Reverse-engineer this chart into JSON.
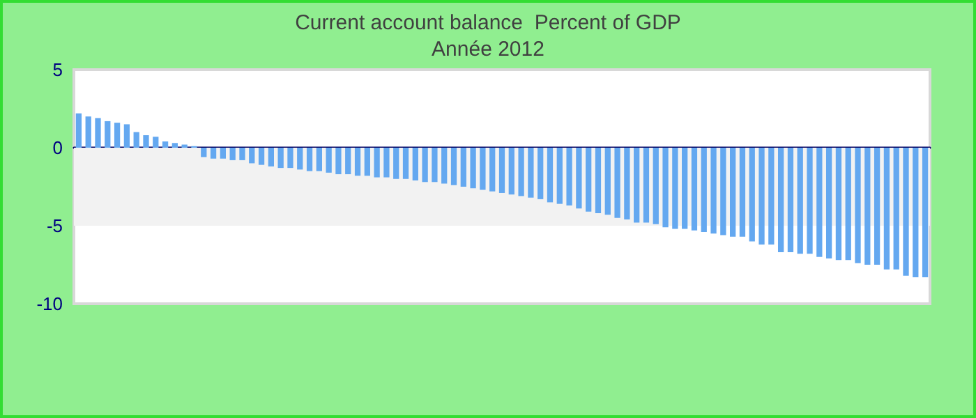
{
  "chart_data": {
    "type": "bar",
    "title": "Current account balance  Percent of GDP",
    "subtitle": "Année 2012",
    "categories": [
      null,
      null,
      null,
      null,
      null,
      null,
      null,
      null,
      null,
      null,
      null,
      null,
      null,
      null,
      null,
      null,
      null,
      null,
      null,
      null,
      null,
      null,
      null,
      null,
      null,
      null,
      null,
      null,
      null,
      null,
      null,
      null,
      null,
      null,
      null,
      null,
      null,
      null,
      null,
      null,
      null,
      null,
      null,
      null,
      null,
      null,
      null,
      null,
      null,
      null,
      null,
      null,
      null,
      null,
      null,
      null,
      null,
      null,
      null,
      null,
      null,
      null,
      null,
      null,
      null,
      null,
      null,
      null,
      null,
      null,
      null,
      null,
      null,
      null,
      null,
      null,
      null,
      null,
      null,
      null,
      null,
      null,
      null,
      null,
      null,
      null,
      null,
      null,
      null
    ],
    "values": [
      2.2,
      2.0,
      1.9,
      1.7,
      1.6,
      1.5,
      1.0,
      0.8,
      0.7,
      0.4,
      0.3,
      0.2,
      0.1,
      -0.6,
      -0.7,
      -0.7,
      -0.8,
      -0.8,
      -1.0,
      -1.1,
      -1.2,
      -1.3,
      -1.3,
      -1.4,
      -1.5,
      -1.5,
      -1.6,
      -1.7,
      -1.7,
      -1.8,
      -1.8,
      -1.9,
      -1.9,
      -2.0,
      -2.0,
      -2.1,
      -2.2,
      -2.2,
      -2.3,
      -2.4,
      -2.5,
      -2.6,
      -2.7,
      -2.8,
      -2.9,
      -3.0,
      -3.1,
      -3.2,
      -3.3,
      -3.5,
      -3.6,
      -3.7,
      -3.9,
      -4.1,
      -4.2,
      -4.3,
      -4.5,
      -4.6,
      -4.8,
      -4.8,
      -4.9,
      -5.1,
      -5.2,
      -5.2,
      -5.3,
      -5.4,
      -5.5,
      -5.6,
      -5.7,
      -5.7,
      -6.0,
      -6.2,
      -6.2,
      -6.7,
      -6.7,
      -6.8,
      -6.8,
      -7.0,
      -7.1,
      -7.2,
      -7.2,
      -7.4,
      -7.5,
      -7.5,
      -7.8,
      -7.8,
      -8.2,
      -8.3,
      -8.3
    ],
    "color": "#64a8f0",
    "ylim": [
      -10,
      5
    ],
    "yticks": [
      -10,
      -5,
      0,
      5
    ],
    "bands": [
      {
        "axis": "y",
        "from": 0,
        "to": -5,
        "color": "#f2f2f2"
      }
    ],
    "grid": false
  }
}
